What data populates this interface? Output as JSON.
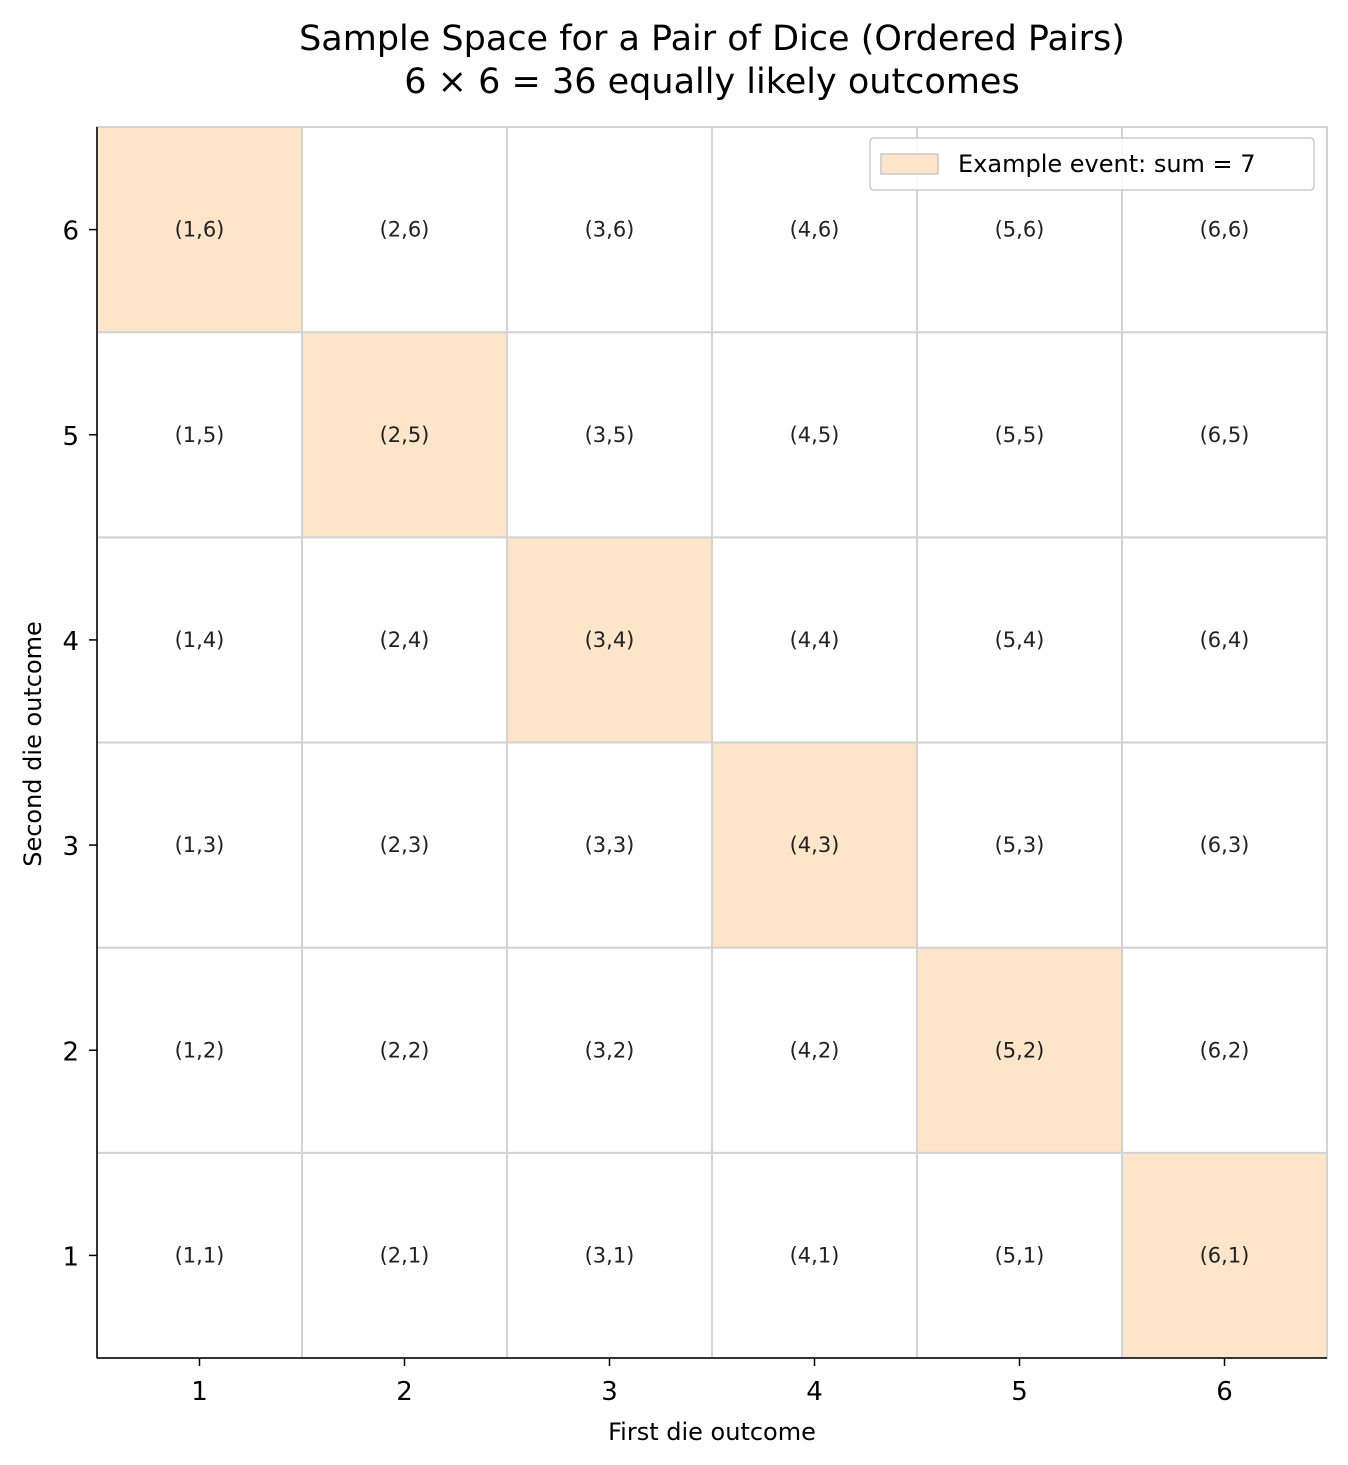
{
  "chart_data": {
    "type": "heatmap",
    "title": "Sample Space for a Pair of Dice (Ordered Pairs)",
    "subtitle": "6 × 6 = 36 equally likely outcomes",
    "xlabel": "First die outcome",
    "ylabel": "Second die outcome",
    "x_ticks": [
      "1",
      "2",
      "3",
      "4",
      "5",
      "6"
    ],
    "y_ticks": [
      "1",
      "2",
      "3",
      "4",
      "5",
      "6"
    ],
    "xlim": [
      0.5,
      6.5
    ],
    "ylim": [
      0.5,
      6.5
    ],
    "cells": [
      {
        "x": 1,
        "y": 1,
        "label": "(1,1)",
        "in_event": false
      },
      {
        "x": 1,
        "y": 2,
        "label": "(1,2)",
        "in_event": false
      },
      {
        "x": 1,
        "y": 3,
        "label": "(1,3)",
        "in_event": false
      },
      {
        "x": 1,
        "y": 4,
        "label": "(1,4)",
        "in_event": false
      },
      {
        "x": 1,
        "y": 5,
        "label": "(1,5)",
        "in_event": false
      },
      {
        "x": 1,
        "y": 6,
        "label": "(1,6)",
        "in_event": true
      },
      {
        "x": 2,
        "y": 1,
        "label": "(2,1)",
        "in_event": false
      },
      {
        "x": 2,
        "y": 2,
        "label": "(2,2)",
        "in_event": false
      },
      {
        "x": 2,
        "y": 3,
        "label": "(2,3)",
        "in_event": false
      },
      {
        "x": 2,
        "y": 4,
        "label": "(2,4)",
        "in_event": false
      },
      {
        "x": 2,
        "y": 5,
        "label": "(2,5)",
        "in_event": true
      },
      {
        "x": 2,
        "y": 6,
        "label": "(2,6)",
        "in_event": false
      },
      {
        "x": 3,
        "y": 1,
        "label": "(3,1)",
        "in_event": false
      },
      {
        "x": 3,
        "y": 2,
        "label": "(3,2)",
        "in_event": false
      },
      {
        "x": 3,
        "y": 3,
        "label": "(3,3)",
        "in_event": false
      },
      {
        "x": 3,
        "y": 4,
        "label": "(3,4)",
        "in_event": true
      },
      {
        "x": 3,
        "y": 5,
        "label": "(3,5)",
        "in_event": false
      },
      {
        "x": 3,
        "y": 6,
        "label": "(3,6)",
        "in_event": false
      },
      {
        "x": 4,
        "y": 1,
        "label": "(4,1)",
        "in_event": false
      },
      {
        "x": 4,
        "y": 2,
        "label": "(4,2)",
        "in_event": false
      },
      {
        "x": 4,
        "y": 3,
        "label": "(4,3)",
        "in_event": true
      },
      {
        "x": 4,
        "y": 4,
        "label": "(4,4)",
        "in_event": false
      },
      {
        "x": 4,
        "y": 5,
        "label": "(4,5)",
        "in_event": false
      },
      {
        "x": 4,
        "y": 6,
        "label": "(4,6)",
        "in_event": false
      },
      {
        "x": 5,
        "y": 1,
        "label": "(5,1)",
        "in_event": false
      },
      {
        "x": 5,
        "y": 2,
        "label": "(5,2)",
        "in_event": true
      },
      {
        "x": 5,
        "y": 3,
        "label": "(5,3)",
        "in_event": false
      },
      {
        "x": 5,
        "y": 4,
        "label": "(5,4)",
        "in_event": false
      },
      {
        "x": 5,
        "y": 5,
        "label": "(5,5)",
        "in_event": false
      },
      {
        "x": 5,
        "y": 6,
        "label": "(5,6)",
        "in_event": false
      },
      {
        "x": 6,
        "y": 1,
        "label": "(6,1)",
        "in_event": true
      },
      {
        "x": 6,
        "y": 2,
        "label": "(6,2)",
        "in_event": false
      },
      {
        "x": 6,
        "y": 3,
        "label": "(6,3)",
        "in_event": false
      },
      {
        "x": 6,
        "y": 4,
        "label": "(6,4)",
        "in_event": false
      },
      {
        "x": 6,
        "y": 5,
        "label": "(6,5)",
        "in_event": false
      },
      {
        "x": 6,
        "y": 6,
        "label": "(6,6)",
        "in_event": false
      }
    ],
    "legend": {
      "placement": "top-right",
      "entries": [
        {
          "label": "Example event: sum = 7",
          "color": "#fde5ca"
        }
      ]
    },
    "colors": {
      "event_fill": "#fde5ca",
      "default_fill": "#ffffff",
      "grid": "#d3d3d3",
      "axis": "#000000"
    },
    "grid": true
  }
}
